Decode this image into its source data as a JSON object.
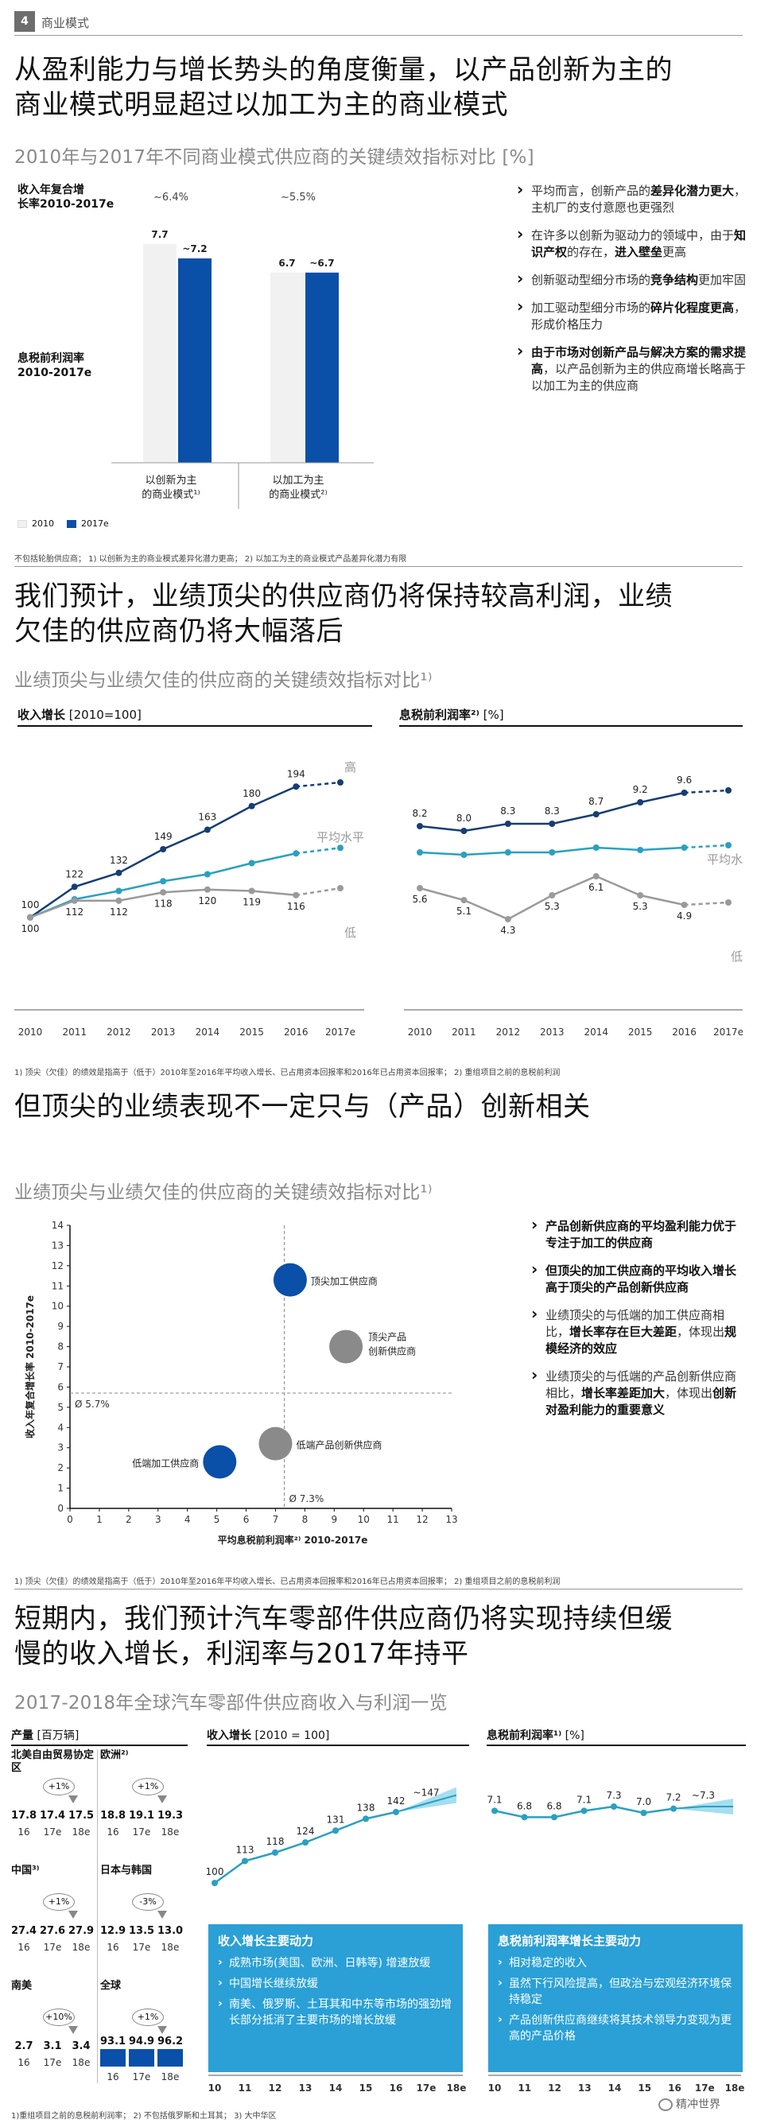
{
  "header": {
    "number": "4",
    "label": "商业模式"
  },
  "s1": {
    "title_line1": "从盈利能力与增长势头的角度衡量，以产品创新为主的",
    "title_line2": "商业模式明显超过以加工为主的商业模式",
    "subtitle": "2010年与2017年不同商业模式供应商的关键绩效指标对比 [%]",
    "growth_label_1": "收入年复合增",
    "growth_label_2": "长率2010-2017e",
    "growth_a": "~6.4%",
    "growth_b": "~5.5%",
    "ebit_label_1": "息税前利润率",
    "ebit_label_2": "2010-2017e",
    "cat_a_1": "以创新为主",
    "cat_a_2": "的商业模式¹⁾",
    "cat_b_1": "以加工为主",
    "cat_b_2": "的商业模式²⁾",
    "legend_2010": "2010",
    "legend_2017": "2017e",
    "footnote": "不包括轮胎供应商； 1) 以创新为主的商业模式差异化潜力更高；  2) 以加工为主的商业模式产品差异化潜力有限",
    "bullets": [
      {
        "pre": "平均而言，创新产品的",
        "bold": "差异化潜力更大",
        "post": "，主机厂的支付意愿也更强烈"
      },
      {
        "pre": "在许多以创新为驱动力的领域中，由于",
        "bold": "知识产权",
        "post": "的存在，",
        "bold2": "进入壁垒",
        "post2": "更高"
      },
      {
        "pre": "创新驱动型细分市场的",
        "bold": "竞争结构",
        "post": "更加牢固"
      },
      {
        "pre": "加工驱动型细分市场的",
        "bold": "碎片化程度更高",
        "post": "，形成价格压力"
      },
      {
        "pre": "",
        "bold": "由于市场对创新产品与解决方案的需求提高",
        "post": "，以产品创新为主的供应商增长略高于以加工为主的供应商"
      }
    ]
  },
  "s2": {
    "title_line1": "我们预计，业绩顶尖的供应商仍将保持较高利润，业绩",
    "title_line2": "欠佳的供应商仍将大幅落后",
    "subtitle": "业绩顶尖与业绩欠佳的供应商的关键绩效指标对比¹⁾",
    "left_title": "收入增长",
    "left_unit": " [2010=100]",
    "right_title": "息税前利润率²⁾",
    "right_unit": " [%]",
    "label_high": "高",
    "label_avg": "平均水平",
    "label_avg_r": "平均水",
    "label_low": "低",
    "footnote": "1) 顶尖（欠佳）的绩效是指高于（低于）2010年至2016年平均收入增长、已占用资本回报率和2016年已占用资本回报率；  2) 重组项目之前的息税前利润"
  },
  "s3": {
    "title": "但顶尖的业绩表现不一定只与（产品）创新相关",
    "subtitle": "业绩顶尖与业绩欠佳的供应商的关键绩效指标对比¹⁾",
    "ylabel": "收入年复合增长率 2010-2017e",
    "xlabel": "平均息税前利润率²⁾ 2010-2017e",
    "avg_y_label": "Ø 5.7%",
    "avg_x_label": "Ø 7.3%",
    "footnote": "1) 顶尖（欠佳）的绩效是指高于（低于）2010年至2016年平均收入增长、已占用资本回报率和2016年已占用资本回报率；  2) 重组项目之前的息税前利润",
    "bullets": [
      {
        "pre": "",
        "bold": "产品创新供应商的平均盈利能力优于专注于加工的供应商",
        "post": ""
      },
      {
        "pre": "",
        "bold": "但顶尖的加工供应商的平均收入增长高于顶尖的产品创新供应商",
        "post": ""
      },
      {
        "pre": "业绩顶尖的与低端的加工供应商相比，",
        "bold": "增长率存在巨大差距",
        "post": "，体现出",
        "bold2": "规模经济的效应",
        "post2": ""
      },
      {
        "pre": "业绩顶尖的与低端的产品创新供应商相比，",
        "bold": "增长率差距加大",
        "post": "，体现出",
        "bold2": "创新对盈利能力的重要意义",
        "post2": ""
      }
    ]
  },
  "s4": {
    "title_line1": "短期内，我们预计汽车零部件供应商仍将实现持续但缓",
    "title_line2": "慢的收入增长，利润率与2017年持平",
    "subtitle": "2017-2018年全球汽车零部件供应商收入与利润一览",
    "prod_title": "产量",
    "prod_unit": " [百万辆]",
    "growth_title": "收入增长",
    "growth_unit": " [2010 = 100]",
    "margin_title": "息税前利润率¹⁾",
    "margin_unit": " [%]",
    "regions": [
      {
        "name": "北美自由贸易协定区",
        "change": "+1%",
        "values": [
          "17.8",
          "17.4",
          "17.5"
        ]
      },
      {
        "name": "欧洲²⁾",
        "change": "+1%",
        "values": [
          "18.8",
          "19.1",
          "19.3"
        ]
      },
      {
        "name": "中国³⁾",
        "change": "+1%",
        "values": [
          "27.4",
          "27.6",
          "27.9"
        ]
      },
      {
        "name": "日本与韩国",
        "change": "-3%",
        "values": [
          "12.9",
          "13.5",
          "13.0"
        ]
      },
      {
        "name": "南美",
        "change": "+10%",
        "values": [
          "2.7",
          "3.1",
          "3.4"
        ]
      },
      {
        "name": "全球",
        "change": "+1%",
        "values": [
          "93.1",
          "94.9",
          "96.2"
        ]
      }
    ],
    "years_short": [
      "16",
      "17e",
      "18e"
    ],
    "growth_box": {
      "title": "收入增长主要动力",
      "items": [
        "成熟市场(美国、欧洲、日韩等) 增速放缓",
        "中国增长继续放缓",
        "南美、俄罗斯、土耳其和中东等市场的强劲增长部分抵消了主要市场的增长放缓"
      ]
    },
    "margin_box": {
      "title": "息税前利润率增长主要动力",
      "items": [
        "相对稳定的收入",
        "虽然下行风险提高，但政治与宏观经济环境保持稳定",
        "产品创新供应商继续将其技术领导力变现为更高的产品价格"
      ]
    },
    "footnote": "1)重组项目之前的息税前利润率；  2) 不包括俄罗斯和土耳其；  3) 大中华区",
    "watermark": "精冲世界"
  },
  "chart_data": [
    {
      "type": "bar",
      "title": "2010年与2017年不同商业模式供应商的关键绩效指标对比 [%]",
      "categories": [
        "以创新为主的商业模式¹⁾",
        "以加工为主的商业模式²⁾"
      ],
      "series": [
        {
          "name": "2010",
          "values": [
            7.7,
            6.7
          ],
          "color": "#f1f1f1"
        },
        {
          "name": "2017e",
          "values": [
            7.2,
            6.7
          ],
          "color": "#0a4fa8"
        }
      ],
      "value_labels": [
        [
          "7.7",
          "~7.2"
        ],
        [
          "6.7",
          "~6.7"
        ]
      ],
      "growth_labels": [
        "~6.4%",
        "~5.5%"
      ]
    },
    {
      "type": "line",
      "title": "收入增长 [2010=100]",
      "x": [
        "2010",
        "2011",
        "2012",
        "2013",
        "2014",
        "2015",
        "2016",
        "2017e"
      ],
      "series": [
        {
          "name": "高",
          "values": [
            100,
            122,
            132,
            149,
            163,
            180,
            194,
            197
          ],
          "labels": [
            "100",
            "122",
            "132",
            "149",
            "163",
            "180",
            "194",
            ""
          ],
          "color": "#163e73"
        },
        {
          "name": "平均水平",
          "values": [
            100,
            113,
            119,
            126,
            131,
            139,
            146,
            150
          ],
          "labels": [
            "",
            "",
            "",
            "",
            "",
            "",
            "",
            ""
          ],
          "color": "#2aa0c0"
        },
        {
          "name": "低",
          "values": [
            100,
            112,
            112,
            118,
            120,
            119,
            116,
            121
          ],
          "labels": [
            "100",
            "112",
            "112",
            "118",
            "120",
            "119",
            "116",
            ""
          ],
          "color": "#9a9a9a"
        }
      ],
      "ylim": [
        85,
        205
      ]
    },
    {
      "type": "line",
      "title": "息税前利润率²⁾ [%]",
      "x": [
        "2010",
        "2011",
        "2012",
        "2013",
        "2014",
        "2015",
        "2016",
        "2017e"
      ],
      "series": [
        {
          "name": "高",
          "values": [
            8.2,
            8.0,
            8.3,
            8.3,
            8.7,
            9.2,
            9.6,
            9.7
          ],
          "labels": [
            "8.2",
            "8.0",
            "8.3",
            "8.3",
            "8.7",
            "9.2",
            "9.6",
            ""
          ],
          "color": "#163e73"
        },
        {
          "name": "平均水平",
          "values": [
            7.1,
            7.0,
            7.1,
            7.1,
            7.3,
            7.2,
            7.3,
            7.4
          ],
          "labels": [
            "",
            "",
            "",
            "",
            "",
            "",
            "",
            ""
          ],
          "color": "#2aa0c0"
        },
        {
          "name": "低",
          "values": [
            5.6,
            5.1,
            4.3,
            5.3,
            6.1,
            5.3,
            4.9,
            5.0
          ],
          "labels": [
            "5.6",
            "5.1",
            "4.3",
            "5.3",
            "6.1",
            "5.3",
            "4.9",
            ""
          ],
          "color": "#9a9a9a"
        }
      ],
      "ylim": [
        3.5,
        10.5
      ]
    },
    {
      "type": "scatter",
      "title": "业绩顶尖与业绩欠佳的供应商的关键绩效指标对比¹⁾",
      "xlim": [
        0,
        13
      ],
      "ylim": [
        0,
        14
      ],
      "xticks": [
        0,
        1,
        2,
        3,
        4,
        5,
        6,
        7,
        8,
        9,
        10,
        11,
        12,
        13
      ],
      "yticks": [
        0,
        1,
        2,
        3,
        4,
        5,
        6,
        7,
        8,
        9,
        10,
        11,
        12,
        13,
        14
      ],
      "avg_x": 7.3,
      "avg_y": 5.7,
      "points": [
        {
          "name": "顶尖加工供应商",
          "x": 7.5,
          "y": 11.3,
          "color": "#0a4fa8"
        },
        {
          "name": "顶尖产品创新供应商",
          "x": 9.4,
          "y": 8.0,
          "color": "#8a8a8a",
          "label_lines": [
            "顶尖产品",
            "创新供应商"
          ]
        },
        {
          "name": "低端产品创新供应商",
          "x": 7.0,
          "y": 3.2,
          "color": "#8a8a8a"
        },
        {
          "name": "低端加工供应商",
          "x": 5.1,
          "y": 2.3,
          "color": "#0a4fa8"
        }
      ]
    },
    {
      "type": "line",
      "title": "收入增长 [2010 = 100]",
      "x": [
        "10",
        "11",
        "12",
        "13",
        "14",
        "15",
        "16",
        "17e",
        "18e"
      ],
      "series": [
        {
          "name": "收入增长",
          "values": [
            100,
            113,
            118,
            124,
            131,
            138,
            142,
            147,
            152
          ],
          "labels": [
            "100",
            "113",
            "118",
            "124",
            "131",
            "138",
            "142",
            "~147",
            ""
          ],
          "color": "#2aa0c0"
        }
      ],
      "ylim": [
        85,
        165
      ]
    },
    {
      "type": "line",
      "title": "息税前利润率¹⁾ [%]",
      "x": [
        "10",
        "11",
        "12",
        "13",
        "14",
        "15",
        "16",
        "17e",
        "18e"
      ],
      "series": [
        {
          "name": "息税前利润率",
          "values": [
            7.1,
            6.8,
            6.8,
            7.1,
            7.3,
            7.0,
            7.2,
            7.3,
            7.3
          ],
          "labels": [
            "7.1",
            "6.8",
            "6.8",
            "7.1",
            "7.3",
            "7.0",
            "7.2",
            "~7.3",
            ""
          ],
          "color": "#2aa0c0"
        }
      ],
      "ylim": [
        5.5,
        8.5
      ]
    }
  ]
}
